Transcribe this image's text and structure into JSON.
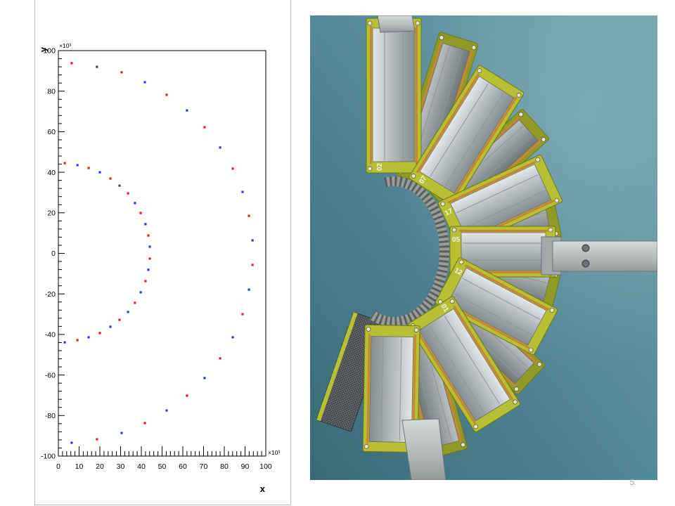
{
  "slide": {
    "page_number": "5"
  },
  "chart_data": {
    "type": "scatter",
    "xlabel": "x",
    "ylabel": "y",
    "x_exponent": "×10³",
    "y_exponent": "×10³",
    "xlim": [
      0,
      100
    ],
    "ylim": [
      -100,
      100
    ],
    "x_ticks": [
      "0",
      "10",
      "20",
      "30",
      "40",
      "50",
      "60",
      "70",
      "80",
      "90",
      "100"
    ],
    "y_ticks": [
      "-100",
      "-80",
      "-60",
      "-40",
      "-20",
      "0",
      "20",
      "40",
      "60",
      "80",
      "100"
    ],
    "grid": false,
    "series": [
      {
        "color": "#e2231a",
        "points": [
          [
            6.4,
            93.8
          ],
          [
            30.5,
            89.3
          ],
          [
            52.2,
            78.2
          ],
          [
            70.5,
            62.2
          ],
          [
            84.1,
            41.8
          ],
          [
            91.9,
            18.5
          ],
          [
            93.6,
            -5.7
          ],
          [
            88.8,
            -30.0
          ],
          [
            78.0,
            -51.8
          ],
          [
            62.0,
            -70.2
          ],
          [
            41.7,
            -83.7
          ],
          [
            18.6,
            -91.7
          ],
          [
            3.1,
            44.5
          ],
          [
            14.6,
            42.1
          ],
          [
            25.1,
            36.9
          ],
          [
            33.6,
            29.6
          ],
          [
            39.7,
            19.9
          ],
          [
            43.4,
            8.8
          ],
          [
            44.1,
            -2.6
          ],
          [
            42.0,
            -13.7
          ],
          [
            36.9,
            -24.4
          ],
          [
            29.5,
            -32.8
          ],
          [
            20.0,
            -39.3
          ],
          [
            9.2,
            -42.8
          ]
        ]
      },
      {
        "color": "#1e3fd9",
        "points": [
          [
            18.6,
            92.0
          ],
          [
            41.7,
            84.4
          ],
          [
            62.0,
            70.5
          ],
          [
            78.0,
            52.2
          ],
          [
            88.8,
            30.3
          ],
          [
            93.6,
            6.4
          ],
          [
            91.9,
            -17.9
          ],
          [
            84.1,
            -41.4
          ],
          [
            70.5,
            -61.5
          ],
          [
            52.2,
            -77.5
          ],
          [
            30.5,
            -88.6
          ],
          [
            6.4,
            -93.4
          ],
          [
            9.2,
            43.5
          ],
          [
            20.0,
            40.0
          ],
          [
            29.5,
            33.4
          ],
          [
            36.9,
            24.8
          ],
          [
            42.0,
            14.4
          ],
          [
            44.1,
            3.3
          ],
          [
            43.4,
            -8.1
          ],
          [
            39.7,
            -19.2
          ],
          [
            33.6,
            -28.9
          ],
          [
            25.1,
            -36.2
          ],
          [
            14.6,
            -41.4
          ],
          [
            3.1,
            -43.9
          ]
        ]
      }
    ]
  },
  "photo": {
    "board_labels": [
      "02",
      "07",
      "17",
      "05",
      "12",
      "01"
    ],
    "colors": {
      "background_light": "#72a2ad",
      "background_mid": "#538896",
      "background_dark": "#3b6976",
      "board": "#b7c032",
      "board_rear": "#8f9a26",
      "board_edge": "#6f7618",
      "copper": "#c7853a",
      "metal": "#b9bdbe"
    }
  }
}
